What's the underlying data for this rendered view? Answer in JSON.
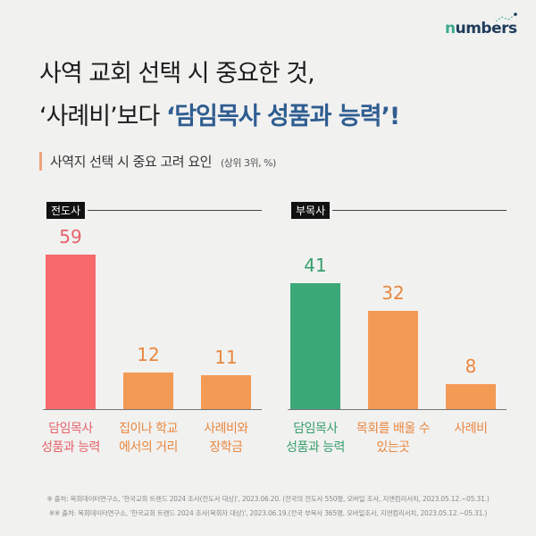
{
  "logo": {
    "text_n": "n",
    "text_rest": "umbers"
  },
  "title": {
    "line1": "사역 교회 선택 시 중요한 것,",
    "line2_prefix": "‘사례비’보다 ",
    "line2_highlight": "‘담임목사 성품과 능력’!"
  },
  "subtitle": {
    "text": "사역지 선택 시 중요 고려 요인",
    "note": "(상위 3위, %)"
  },
  "colors": {
    "red": "#f76a6c",
    "orange": "#f39a55",
    "green": "#3aa877",
    "red_text": "#e5636a",
    "orange_text": "#e9873f",
    "green_text": "#379e6c"
  },
  "chart_data": [
    {
      "type": "bar",
      "title": "전도사",
      "categories": [
        "담임목사\n성품과 능력",
        "집이나 학교\n에서의 거리",
        "사례비와\n장학금"
      ],
      "values": [
        59,
        12,
        11
      ],
      "colors": [
        "red",
        "orange",
        "orange"
      ],
      "ylabel": "%"
    },
    {
      "type": "bar",
      "title": "부목사",
      "categories": [
        "담임목사\n성품과 능력",
        "목회를 배울 수\n있는곳",
        "사례비"
      ],
      "values": [
        41,
        32,
        8
      ],
      "colors": [
        "green",
        "orange",
        "orange"
      ],
      "ylabel": "%"
    }
  ],
  "footnotes": [
    "※   출처: 목회데이터연구소, '한국교회 트렌드 2024 조사(전도사 대상)', 2023.06.20. (전국의 전도사 550명, 모바일 조사, 지앤컴리서치, 2023.05.12.~05.31.)",
    "※※   출처: 목회데이터연구소, '한국교회 트렌드 2024 조사(목회자 대상)', 2023.06.19.(전국 부목사 365명, 모바일조사, 지앤컴리서치, 2023.05.12.~05.31.)"
  ]
}
